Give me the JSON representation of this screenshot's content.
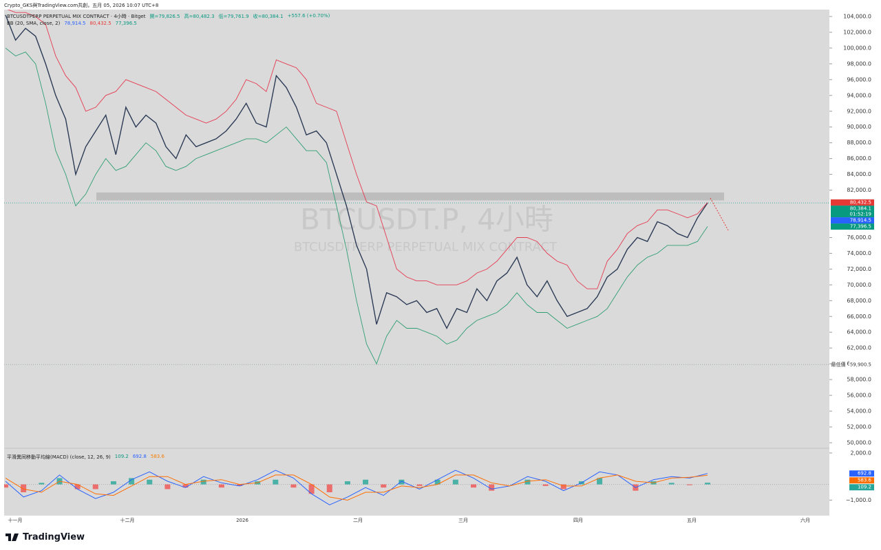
{
  "header": {
    "credit": "Crypto_GKS與TradingView.com共創，五月 05, 2026 10:07 UTC+8",
    "symbol": "BTCUSDTPERP PERPETUAL MIX CONTRACT · 4小時 · Bitget",
    "ohlc": [
      "開=79,826.5",
      "高=80,482.3",
      "低=79,761.9",
      "收=80,384.1",
      "+557.6 (+0.70%)"
    ],
    "bb_label": "BB (20, SMA, close, 2)",
    "bb_values": [
      "78,914.5",
      "80,432.5",
      "77,396.5"
    ],
    "macd_label": "平滑異同移動平均線(MACD) (close, 12, 26, 9)",
    "macd_values": [
      "109.2",
      "692.8",
      "583.6"
    ],
    "watermark": "BTCUSDT.P, 4小時",
    "watermark_sub": "BTCUSDTPERP PERPETUAL MIX CONTRACT",
    "countdown": "01:52:19",
    "low_label": "最低價"
  },
  "footer": {
    "brand": "TradingView"
  },
  "chart_data": [
    {
      "type": "line",
      "x_labels": [
        "十一月",
        "十二月",
        "2026",
        "二月",
        "三月",
        "四月",
        "五月",
        "六月"
      ],
      "series": [
        {
          "name": "close",
          "color": "#2b3a55",
          "values": [
            104200,
            101000,
            102500,
            101500,
            98000,
            94000,
            91000,
            84000,
            87500,
            89500,
            91500,
            86500,
            92500,
            90000,
            91500,
            90500,
            87500,
            86000,
            89000,
            87500,
            88000,
            88500,
            89500,
            91000,
            93000,
            90500,
            90000,
            96500,
            95000,
            92500,
            89000,
            89500,
            88000,
            84000,
            80000,
            75000,
            72000,
            65000,
            69000,
            68500,
            67500,
            68000,
            66500,
            67000,
            64500,
            67000,
            66500,
            69500,
            68000,
            70500,
            71500,
            73500,
            70000,
            68500,
            70500,
            68000,
            66000,
            66500,
            67000,
            68500,
            71000,
            72000,
            74500,
            76000,
            75500,
            78000,
            77500,
            76500,
            76000,
            78500,
            80384.1
          ]
        },
        {
          "name": "upper",
          "color": "#e53950",
          "values": [
            105000,
            104500,
            104500,
            104000,
            103000,
            99000,
            96500,
            95000,
            92000,
            92500,
            94000,
            94500,
            96000,
            95500,
            95000,
            94500,
            93500,
            92500,
            91500,
            91000,
            90500,
            91000,
            92000,
            93500,
            96000,
            95500,
            94500,
            98500,
            98000,
            97500,
            96000,
            93000,
            92500,
            92000,
            88000,
            84000,
            80500,
            80000,
            76000,
            72000,
            71000,
            70500,
            70500,
            70000,
            70000,
            70000,
            70500,
            71500,
            72000,
            73000,
            74500,
            76000,
            76000,
            75500,
            74000,
            73000,
            72500,
            70500,
            69500,
            69500,
            73000,
            74500,
            76500,
            77500,
            78000,
            79500,
            79500,
            79000,
            78500,
            79000,
            80432.5
          ]
        },
        {
          "name": "lower",
          "color": "#2e9e72",
          "values": [
            100000,
            99000,
            99500,
            98000,
            93000,
            87000,
            84000,
            80000,
            81500,
            84000,
            86000,
            84500,
            85000,
            86500,
            88000,
            87000,
            85000,
            84500,
            85000,
            86000,
            86500,
            87000,
            87500,
            88000,
            88500,
            88500,
            88000,
            89000,
            90000,
            88500,
            87000,
            87000,
            85500,
            80000,
            74500,
            68000,
            62500,
            60000,
            63500,
            65500,
            64500,
            64500,
            64000,
            63500,
            62500,
            63000,
            64500,
            65500,
            66000,
            66500,
            67500,
            69000,
            67500,
            66500,
            66500,
            65500,
            64500,
            65000,
            65500,
            66000,
            67000,
            69000,
            71000,
            72500,
            73500,
            74000,
            75000,
            75000,
            75000,
            75500,
            77396.5
          ]
        }
      ],
      "zone": [
        80700,
        81700
      ],
      "ylim": [
        49300,
        104870
      ],
      "yticks": [
        {
          "value": 50000,
          "label": "50,000.0"
        },
        {
          "value": 52000,
          "label": "52,000.0"
        },
        {
          "value": 54000,
          "label": "54,000.0"
        },
        {
          "value": 56000,
          "label": "56,000.0"
        },
        {
          "value": 58000,
          "label": "58,000.0"
        },
        {
          "value": 60000,
          "label": "60,000.0"
        },
        {
          "value": 62000,
          "label": "62,000.0"
        },
        {
          "value": 64000,
          "label": "64,000.0"
        },
        {
          "value": 66000,
          "label": "66,000.0"
        },
        {
          "value": 68000,
          "label": "68,000.0"
        },
        {
          "value": 70000,
          "label": "70,000.0"
        },
        {
          "value": 72000,
          "label": "72,000.0"
        },
        {
          "value": 74000,
          "label": "74,000.0"
        },
        {
          "value": 76000,
          "label": "76,000.0"
        },
        {
          "value": 82000,
          "label": "82,000.0"
        },
        {
          "value": 84000,
          "label": "84,000.0"
        },
        {
          "value": 86000,
          "label": "86,000.0"
        },
        {
          "value": 88000,
          "label": "88,000.0"
        },
        {
          "value": 90000,
          "label": "90,000.0"
        },
        {
          "value": 92000,
          "label": "92,000.0"
        },
        {
          "value": 94000,
          "label": "94,000.0"
        },
        {
          "value": 96000,
          "label": "96,000.0"
        },
        {
          "value": 98000,
          "label": "98,000.0"
        },
        {
          "value": 100000,
          "label": "100,000.0"
        },
        {
          "value": 102000,
          "label": "102,000.0"
        },
        {
          "value": 104000,
          "label": "104,000.0"
        }
      ],
      "tags": [
        {
          "value": 80432.5,
          "label": "80,432.5",
          "color": "#e53935"
        },
        {
          "value": 80384.1,
          "label": "80,384.1",
          "color": "#089981"
        },
        {
          "value": 78914.5,
          "label": "78,914.5",
          "color": "#2962ff"
        },
        {
          "value": 77396.5,
          "label": "77,396.5",
          "color": "#089981"
        }
      ],
      "low": {
        "value": 59900.5,
        "label": "59,900.5"
      }
    },
    {
      "type": "macd",
      "series": [
        {
          "name": "histogram",
          "color": "#26a69a",
          "values": [
            -200,
            -500,
            100,
            400,
            -300,
            -300,
            200,
            400,
            300,
            -300,
            -200,
            300,
            -200,
            -100,
            200,
            300,
            -200,
            -600,
            -500,
            200,
            300,
            -200,
            300,
            -100,
            300,
            300,
            -200,
            -400,
            0,
            300,
            -100,
            -300,
            200,
            400,
            0,
            -400,
            200,
            100,
            -50,
            109.2
          ]
        },
        {
          "name": "macd",
          "color": "#2962ff",
          "values": [
            200,
            -800,
            -400,
            600,
            -300,
            -900,
            -500,
            300,
            800,
            200,
            -200,
            500,
            100,
            -100,
            300,
            900,
            400,
            -600,
            -1300,
            -800,
            -200,
            -700,
            200,
            -300,
            300,
            900,
            400,
            -300,
            -100,
            500,
            200,
            -400,
            100,
            800,
            600,
            -200,
            300,
            500,
            400,
            692.8
          ]
        },
        {
          "name": "signal",
          "color": "#ff6d00",
          "values": [
            400,
            -300,
            -500,
            200,
            0,
            -600,
            -700,
            -100,
            500,
            500,
            0,
            200,
            300,
            0,
            100,
            600,
            600,
            0,
            -800,
            -1000,
            -500,
            -500,
            -100,
            -200,
            0,
            600,
            600,
            100,
            -100,
            200,
            300,
            -100,
            -100,
            400,
            600,
            200,
            100,
            400,
            450,
            583.6
          ]
        }
      ],
      "ylim": [
        -1986,
        2300
      ],
      "yticks": [
        {
          "value": 2000,
          "label": "2,000.0"
        },
        {
          "value": -1000,
          "label": "−1,000.0"
        }
      ],
      "tags": [
        {
          "value": 692.8,
          "label": "692.8",
          "color": "#2962ff"
        },
        {
          "value": 583.6,
          "label": "583.6",
          "color": "#ff6d00"
        },
        {
          "value": 109.2,
          "label": "109.2",
          "color": "#26a69a"
        }
      ]
    }
  ]
}
